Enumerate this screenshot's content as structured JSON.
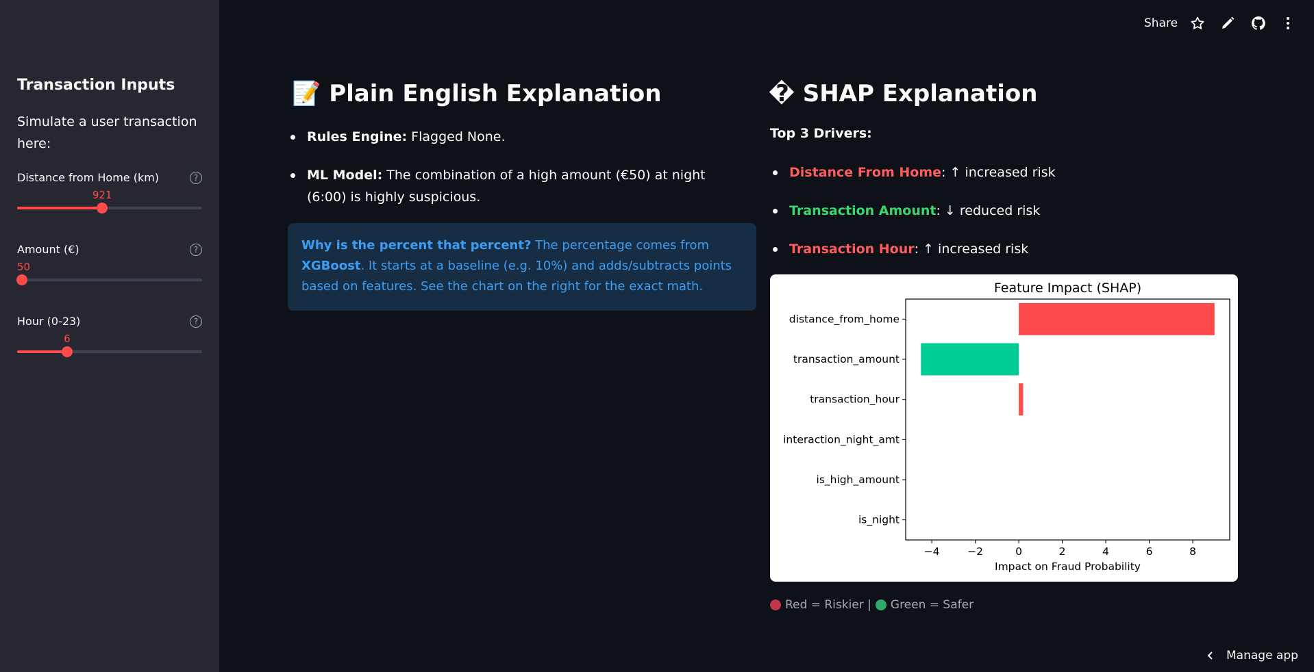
{
  "sidebar": {
    "title": "Transaction Inputs",
    "subtitle": "Simulate a user transaction here:",
    "sliders": [
      {
        "label": "Distance from Home (km)",
        "value": "921",
        "fraction": 0.46
      },
      {
        "label": "Amount (€)",
        "value": "50",
        "fraction": 0.0
      },
      {
        "label": "Hour (0-23)",
        "value": "6",
        "fraction": 0.27
      }
    ],
    "help_glyph": "?"
  },
  "header": {
    "share_label": "Share",
    "icons": [
      "star-icon",
      "pencil-icon",
      "github-icon",
      "kebab-menu-icon"
    ]
  },
  "plain": {
    "emoji": "📝",
    "title": "Plain English Explanation",
    "rules_label": "Rules Engine:",
    "rules_text": "Flagged None.",
    "ml_label": "ML Model:",
    "ml_text": "The combination of a high amount (€50) at night (6:00) is highly suspicious.",
    "info_bold": "Why is the percent that percent?",
    "info_text1": "The percentage comes from",
    "info_bold2": "XGBoost",
    "info_text2": ". It starts at a baseline (e.g. 10%) and adds/subtracts points based on features. See the chart on the right for the exact math."
  },
  "shap": {
    "glyph": "�",
    "title": "SHAP Explanation",
    "drivers_title": "Top 3 Drivers:",
    "drivers": [
      {
        "name": "Distance From Home",
        "arrow": "↑",
        "effect": "increased risk",
        "color": "red"
      },
      {
        "name": "Transaction Amount",
        "arrow": "↓",
        "effect": "reduced risk",
        "color": "green"
      },
      {
        "name": "Transaction Hour",
        "arrow": "↑",
        "effect": "increased risk",
        "color": "red"
      }
    ],
    "legend_red": "Red = Riskier |",
    "legend_green": "Green = Safer"
  },
  "chart_data": {
    "type": "bar",
    "orientation": "horizontal",
    "title": "Feature Impact (SHAP)",
    "xlabel": "Impact on Fraud Probability",
    "ylabel": "",
    "categories": [
      "distance_from_home",
      "transaction_amount",
      "transaction_hour",
      "interaction_night_amt",
      "is_high_amount",
      "is_night"
    ],
    "values": [
      9.0,
      -4.5,
      0.2,
      0,
      0,
      0
    ],
    "xlim": [
      -5.2,
      9.7
    ],
    "xticks": [
      -4,
      -2,
      0,
      2,
      4,
      6,
      8
    ],
    "xtick_labels": [
      "−4",
      "−2",
      "0",
      "2",
      "4",
      "6",
      "8"
    ],
    "positive_color": "#ff4b4b",
    "negative_color": "#00cc96",
    "grid": false
  },
  "footer": {
    "manage_label": "Manage app"
  }
}
